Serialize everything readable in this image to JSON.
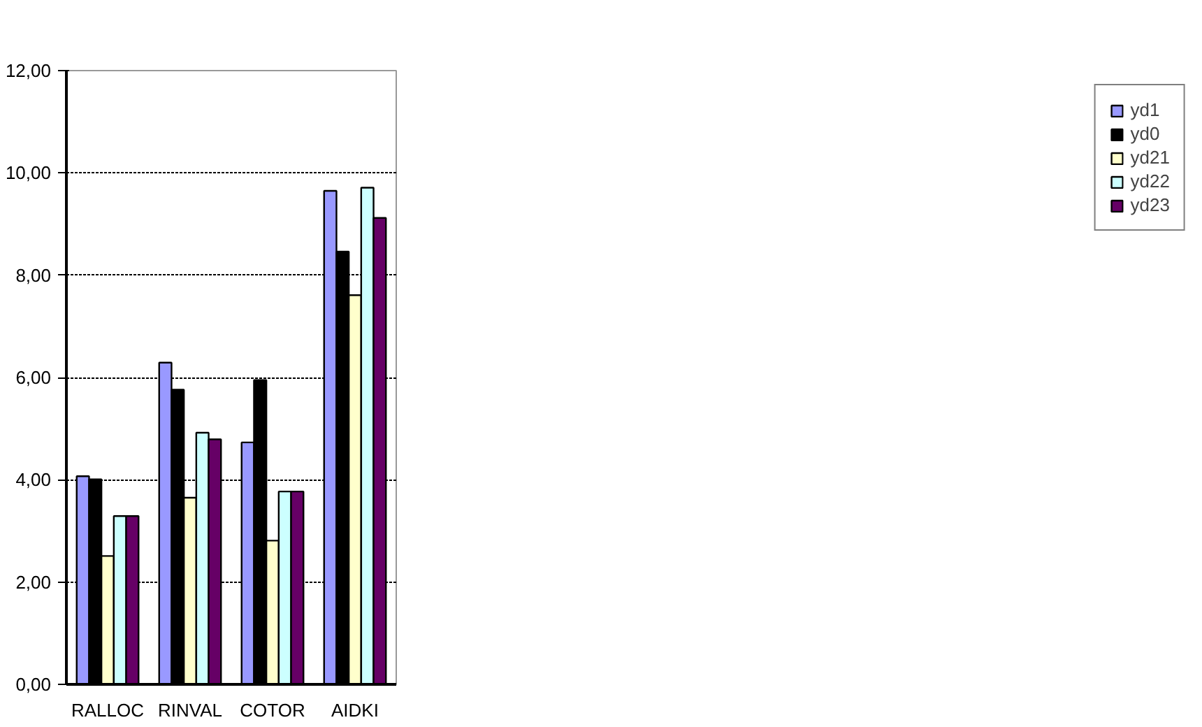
{
  "chart_data": {
    "type": "bar",
    "categories": [
      "RALLOC",
      "RINVAL",
      "COTOR",
      "AIDKI"
    ],
    "series": [
      {
        "name": "yd1",
        "color": "#9999ff",
        "values": [
          4.07,
          6.29,
          4.73,
          9.65
        ]
      },
      {
        "name": "yd0",
        "color": "#000000",
        "values": [
          4.01,
          5.76,
          5.95,
          8.46
        ]
      },
      {
        "name": "yd21",
        "color": "#ffffcc",
        "values": [
          2.51,
          3.65,
          2.81,
          7.61
        ]
      },
      {
        "name": "yd22",
        "color": "#ccffff",
        "values": [
          3.29,
          4.92,
          3.77,
          9.71
        ]
      },
      {
        "name": "yd23",
        "color": "#660066",
        "values": [
          3.29,
          4.79,
          3.77,
          9.12
        ]
      }
    ],
    "ylim": [
      0,
      12
    ],
    "yticks": [
      {
        "value": 0,
        "label": "0,00"
      },
      {
        "value": 2,
        "label": "2,00"
      },
      {
        "value": 4,
        "label": "4,00"
      },
      {
        "value": 6,
        "label": "6,00"
      },
      {
        "value": 8,
        "label": "8,00"
      },
      {
        "value": 10,
        "label": "10,00"
      },
      {
        "value": 12,
        "label": "12,00"
      }
    ],
    "grid": "y",
    "legend": "right"
  }
}
